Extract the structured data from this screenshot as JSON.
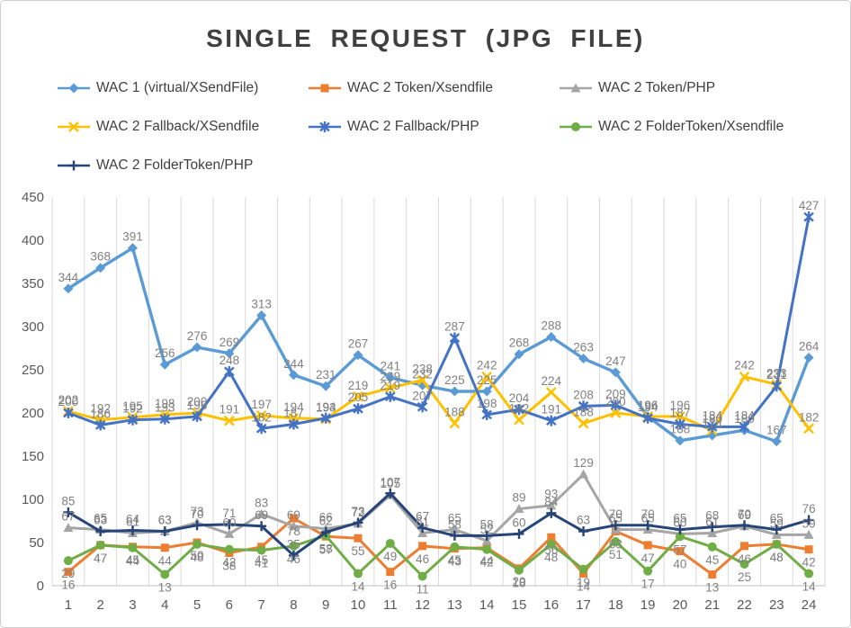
{
  "title": "SINGLE REQUEST (JPG FILE)",
  "chart_data": {
    "type": "line",
    "title": "SINGLE REQUEST (JPG FILE)",
    "x": [
      1,
      2,
      3,
      4,
      5,
      6,
      7,
      8,
      9,
      10,
      11,
      12,
      13,
      14,
      15,
      16,
      17,
      18,
      19,
      20,
      21,
      22,
      23,
      24
    ],
    "ylim": [
      0,
      450
    ],
    "ytick_step": 50,
    "y_ticks": [
      0,
      50,
      100,
      150,
      200,
      250,
      300,
      350,
      400,
      450
    ],
    "grid": "vertical-only",
    "legend_position": "top",
    "data_labels": true,
    "series": [
      {
        "name": "WAC 1 (virtual/XSendFile)",
        "marker": "diamond",
        "color": "#5B9BD5",
        "values": [
          344,
          368,
          391,
          256,
          276,
          269,
          313,
          244,
          231,
          267,
          241,
          232,
          225,
          225,
          268,
          288,
          263,
          247,
          196,
          168,
          174,
          180,
          167,
          264
        ]
      },
      {
        "name": "WAC 2 Token/Xsendfile",
        "marker": "square",
        "color": "#ED7D31",
        "values": [
          16,
          47,
          45,
          44,
          50,
          38,
          45,
          78,
          57,
          55,
          16,
          46,
          43,
          44,
          20,
          56,
          14,
          63,
          47,
          40,
          13,
          46,
          48,
          42
        ]
      },
      {
        "name": "WAC 2 Token/PHP",
        "marker": "triangle",
        "color": "#A5A5A5",
        "values": [
          67,
          65,
          61,
          63,
          73,
          60,
          83,
          69,
          66,
          72,
          105,
          61,
          65,
          52,
          89,
          93,
          129,
          65,
          65,
          60,
          61,
          69,
          59,
          59
        ]
      },
      {
        "name": "WAC 2 Fallback/XSendfile",
        "marker": "x",
        "color": "#FFC000",
        "values": [
          202,
          192,
          195,
          198,
          200,
          191,
          197,
          194,
          193,
          219,
          229,
          238,
          188,
          242,
          192,
          224,
          188,
          200,
          196,
          196,
          180,
          242,
          233,
          182
        ]
      },
      {
        "name": "WAC 2 Fallback/PHP",
        "marker": "star",
        "color": "#4472C4",
        "values": [
          200,
          186,
          192,
          193,
          196,
          248,
          182,
          187,
          194,
          205,
          219,
          207,
          287,
          198,
          204,
          191,
          208,
          209,
          194,
          187,
          184,
          184,
          231,
          427
        ]
      },
      {
        "name": "WAC 2 FolderToken/Xsendfile",
        "marker": "circle",
        "color": "#70AD47",
        "values": [
          29,
          47,
          44,
          13,
          48,
          42,
          41,
          46,
          58,
          14,
          49,
          11,
          45,
          42,
          18,
          48,
          19,
          51,
          17,
          57,
          45,
          25,
          48,
          14
        ]
      },
      {
        "name": "WAC 2 FolderToken/PHP",
        "marker": "plus",
        "color": "#264478",
        "values": [
          85,
          63,
          64,
          63,
          70,
          71,
          69,
          35,
          62,
          73,
          107,
          67,
          58,
          58,
          60,
          84,
          63,
          70,
          70,
          65,
          68,
          70,
          65,
          76
        ]
      }
    ]
  }
}
